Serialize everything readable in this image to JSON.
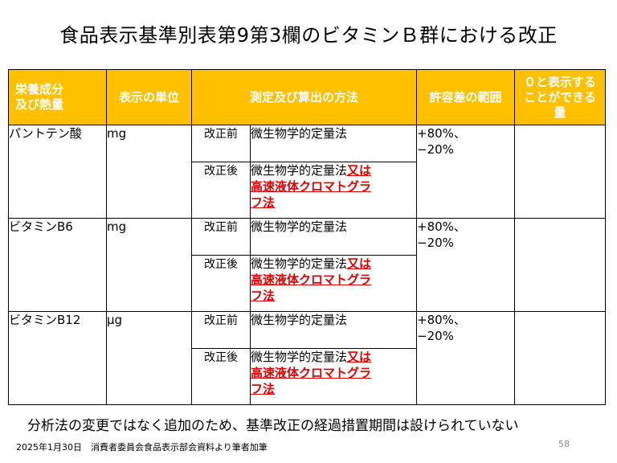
{
  "title": "食品表示基準別表第9第3欄のビタミンＢ群における改正",
  "headers": {
    "nutrient": [
      "栄養成分",
      "及び熱量"
    ],
    "unit": "表示の単位",
    "method": "測定及び算出の方法",
    "tolerance": "許容差の範囲",
    "zero": [
      "０と表示する",
      "ことができる",
      "量"
    ]
  },
  "rows": [
    {
      "name": "パントテン酸",
      "unit": "mg",
      "before_label": "改正前",
      "before_method": "微生物学的定量法",
      "after_label": "改正後",
      "after_method_plain": "微生物学的定量法",
      "after_method_added": [
        "又は",
        "高速液体クロマトグラ",
        "フ法"
      ],
      "tolerance": [
        "+80%、",
        "−20%"
      ]
    },
    {
      "name": "ビタミンB6",
      "unit": "mg",
      "before_label": "改正前",
      "before_method": "微生物学的定量法",
      "after_label": "改正後",
      "after_method_plain": "微生物学的定量法",
      "after_method_added": [
        "又は",
        "高速液体クロマトグラ",
        "フ法"
      ],
      "tolerance": [
        "+80%、",
        "−20%"
      ]
    },
    {
      "name": "ビタミンB12",
      "unit": "μg",
      "before_label": "改正前",
      "before_method": "微生物学的定量法",
      "after_label": "改正後",
      "after_method_plain": "微生物学的定量法",
      "after_method_added": [
        "又は",
        "高速液体クロマトグラ",
        "フ法"
      ],
      "tolerance": [
        "+80%、",
        "−20%"
      ]
    }
  ],
  "footer_note": "分析法の変更ではなく追加のため、基準改正の経過措置期間は設けられていない",
  "source": "2025年1月30日　消費者委員会食品表示部会資料より筆者加筆",
  "page_number": "58",
  "colors": {
    "header_bg": "#ffc000",
    "header_text": "#ffffff",
    "added_text": "#e00000"
  }
}
